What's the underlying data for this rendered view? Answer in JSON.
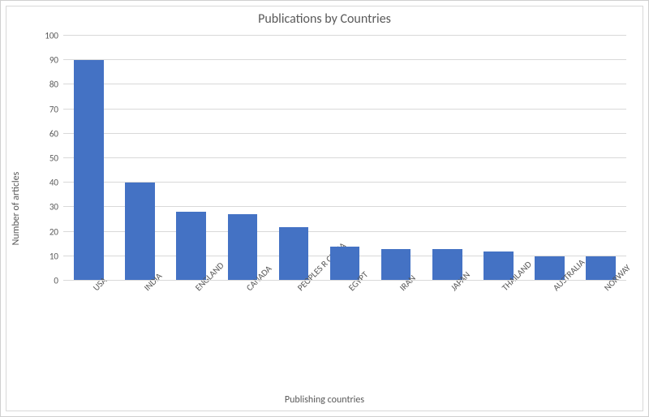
{
  "chart": {
    "type": "bar",
    "title": "Publications by Countries",
    "xlabel": "Publishing countries",
    "ylabel": "Number of articles",
    "categories": [
      "USA",
      "INDIA",
      "ENGLAND",
      "CANADA",
      "PEOPLES R CHINA",
      "EGYPT",
      "IRAN",
      "JAPAN",
      "THAILAND",
      "AUSTRALIA",
      "NORWAY"
    ],
    "values": [
      90,
      40,
      28,
      27,
      22,
      14,
      13,
      13,
      12,
      10,
      10
    ],
    "ylim": [
      0,
      100
    ],
    "ytick_step": 10,
    "yticks": [
      0,
      10,
      20,
      30,
      40,
      50,
      60,
      70,
      80,
      90,
      100
    ],
    "bar_color": "#4472c4",
    "background_color": "#ffffff",
    "grid_color": "#d9d9d9",
    "border_color": "#d9d9d9",
    "text_color": "#595959",
    "title_fontsize": 16,
    "label_fontsize": 12,
    "tick_fontsize": 11,
    "bar_width": 0.58,
    "x_tick_rotation": -45
  }
}
